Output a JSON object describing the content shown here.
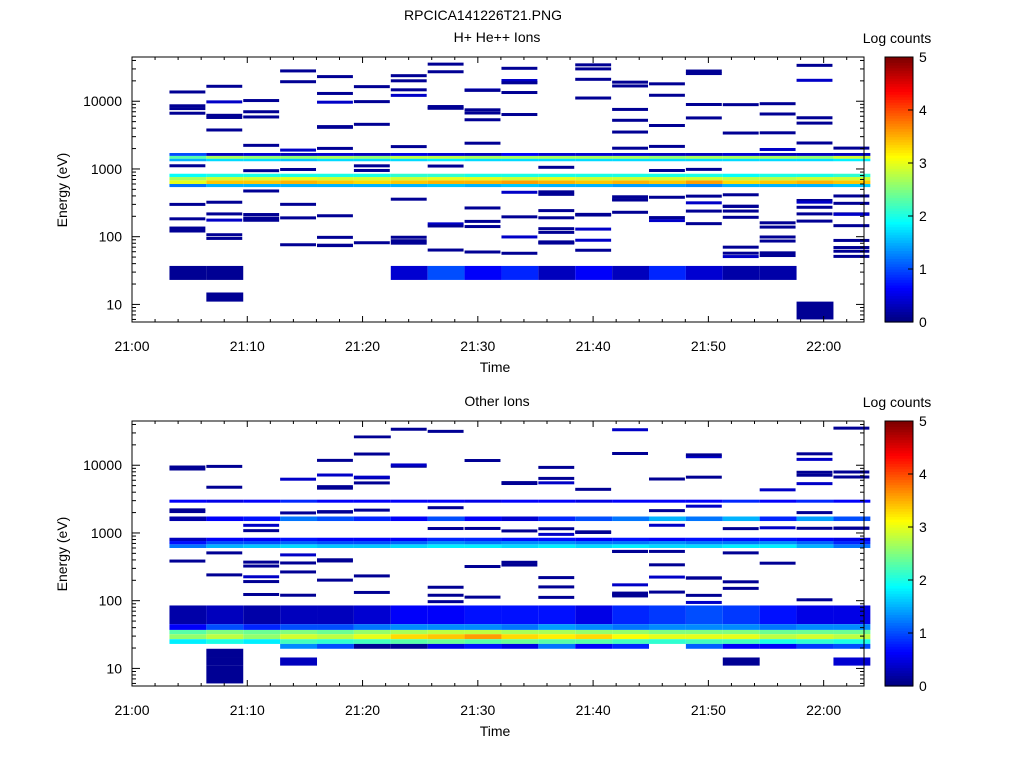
{
  "page_title": "RPCICA141226T21.PNG",
  "chart_data": [
    {
      "type": "heatmap",
      "title": "H+ He++ Ions",
      "xlabel": "Time",
      "ylabel": "Energy (eV)",
      "x_ticks": [
        "21:00",
        "21:10",
        "21:20",
        "21:30",
        "21:40",
        "21:50",
        "22:00"
      ],
      "x_range_minutes": [
        0,
        63.5
      ],
      "y_scale": "log",
      "y_ticks": [
        "10",
        "100",
        "1000",
        "10000"
      ],
      "y_range": [
        5.5,
        45000
      ],
      "colorbar": {
        "label": "Log counts",
        "ticks": [
          "0",
          "1",
          "2",
          "3",
          "4",
          "5"
        ],
        "range": [
          0,
          5
        ]
      },
      "time_bins_minutes": [
        3.25,
        6.45,
        9.65,
        12.85,
        16.05,
        19.25,
        22.45,
        25.65,
        28.85,
        32.05,
        35.25,
        38.45,
        41.65,
        44.85,
        48.05,
        51.25,
        54.45,
        57.65,
        60.85
      ],
      "bands": [
        {
          "e_lo": 540,
          "e_hi": 600,
          "values": [
            1.2,
            1.5,
            1.5,
            1.5,
            1.5,
            1.5,
            1.5,
            1.6,
            1.5,
            1.6,
            1.5,
            1.5,
            1.4,
            1.4,
            1.3,
            1.5,
            1.5,
            1.5,
            1.6
          ]
        },
        {
          "e_lo": 600,
          "e_hi": 680,
          "values": [
            3.0,
            3.4,
            3.4,
            3.5,
            3.4,
            3.3,
            3.4,
            3.5,
            3.5,
            3.6,
            3.5,
            3.4,
            3.5,
            3.4,
            3.6,
            3.3,
            3.4,
            3.5,
            3.4
          ]
        },
        {
          "e_lo": 680,
          "e_hi": 760,
          "values": [
            2.7,
            2.9,
            2.9,
            3.0,
            2.9,
            2.9,
            2.9,
            3.0,
            3.0,
            2.9,
            3.0,
            2.9,
            2.9,
            2.9,
            2.9,
            2.8,
            2.8,
            2.9,
            2.9
          ]
        },
        {
          "e_lo": 760,
          "e_hi": 850,
          "values": [
            1.9,
            2.0,
            2.0,
            2.0,
            2.0,
            2.0,
            2.1,
            2.1,
            2.0,
            2.0,
            2.0,
            2.0,
            2.0,
            2.0,
            2.0,
            1.9,
            2.0,
            2.0,
            2.1
          ]
        },
        {
          "e_lo": 1300,
          "e_hi": 1420,
          "values": [
            1.5,
            1.7,
            1.7,
            1.6,
            1.7,
            1.7,
            1.7,
            1.8,
            1.7,
            1.7,
            1.7,
            1.7,
            1.7,
            1.7,
            1.7,
            1.7,
            1.7,
            1.7,
            1.8
          ]
        },
        {
          "e_lo": 1420,
          "e_hi": 1560,
          "values": [
            2.3,
            2.7,
            2.6,
            2.6,
            2.7,
            2.6,
            2.8,
            2.8,
            2.7,
            2.7,
            2.7,
            2.7,
            2.7,
            2.6,
            2.7,
            2.7,
            2.7,
            2.6,
            2.9
          ]
        },
        {
          "e_lo": 1560,
          "e_hi": 1720,
          "values": [
            1.0,
            0.3,
            0.4,
            0.3,
            0.4,
            0.3,
            0.5,
            0.4,
            0.3,
            0.6,
            0.4,
            0.4,
            0.4,
            0.3,
            0.3,
            0.4,
            0.3,
            0.3,
            0.3
          ]
        },
        {
          "e_lo": 23,
          "e_hi": 37,
          "values": [
            0.1,
            0.1,
            null,
            null,
            null,
            null,
            0.4,
            1.0,
            0.6,
            0.8,
            0.3,
            0.6,
            0.3,
            0.8,
            0.4,
            0.2,
            0.2,
            null,
            null
          ]
        },
        {
          "e_lo": 11,
          "e_hi": 15,
          "values": [
            null,
            0.1,
            null,
            null,
            null,
            null,
            null,
            null,
            null,
            null,
            null,
            null,
            null,
            null,
            null,
            null,
            null,
            null,
            null
          ]
        },
        {
          "e_lo": 6,
          "e_hi": 11,
          "values": [
            null,
            null,
            null,
            null,
            null,
            null,
            null,
            null,
            null,
            null,
            null,
            null,
            null,
            null,
            null,
            null,
            null,
            0.1,
            null
          ]
        }
      ],
      "scatter_level": 0.1,
      "scatter_count_per_bin": 11
    },
    {
      "type": "heatmap",
      "title": "Other Ions",
      "xlabel": "Time",
      "ylabel": "Energy (eV)",
      "x_ticks": [
        "21:00",
        "21:10",
        "21:20",
        "21:30",
        "21:40",
        "21:50",
        "22:00"
      ],
      "x_range_minutes": [
        0,
        63.5
      ],
      "y_scale": "log",
      "y_ticks": [
        "10",
        "100",
        "1000",
        "10000"
      ],
      "y_range": [
        5.5,
        45000
      ],
      "colorbar": {
        "label": "Log counts",
        "ticks": [
          "0",
          "1",
          "2",
          "3",
          "4",
          "5"
        ],
        "range": [
          0,
          5
        ]
      },
      "time_bins_minutes": [
        3.25,
        6.45,
        9.65,
        12.85,
        16.05,
        19.25,
        22.45,
        25.65,
        28.85,
        32.05,
        35.25,
        38.45,
        41.65,
        44.85,
        48.05,
        51.25,
        54.45,
        57.65,
        60.85
      ],
      "bands": [
        {
          "e_lo": 2800,
          "e_hi": 3100,
          "values": [
            0.6,
            0.5,
            0.6,
            0.8,
            0.6,
            0.6,
            0.6,
            0.6,
            0.5,
            0.6,
            0.6,
            0.5,
            0.6,
            0.6,
            0.6,
            0.8,
            0.6,
            0.8,
            0.6
          ]
        },
        {
          "e_lo": 1500,
          "e_hi": 1750,
          "values": [
            0.2,
            0.6,
            0.7,
            1.2,
            1.0,
            0.8,
            0.6,
            1.0,
            0.6,
            0.4,
            0.8,
            1.0,
            1.2,
            1.5,
            1.2,
            1.5,
            0.8,
            1.4,
            1.0
          ]
        },
        {
          "e_lo": 600,
          "e_hi": 680,
          "values": [
            1.2,
            1.5,
            1.6,
            1.7,
            1.6,
            1.6,
            1.7,
            1.8,
            1.8,
            1.7,
            1.8,
            1.7,
            1.8,
            1.7,
            1.7,
            1.8,
            1.8,
            1.5,
            1.2
          ]
        },
        {
          "e_lo": 680,
          "e_hi": 760,
          "values": [
            0.7,
            1.0,
            1.0,
            1.1,
            1.0,
            1.0,
            1.1,
            1.3,
            1.2,
            1.3,
            1.3,
            1.2,
            1.2,
            1.3,
            1.2,
            1.2,
            1.3,
            1.1,
            0.8
          ]
        },
        {
          "e_lo": 760,
          "e_hi": 850,
          "values": [
            0.3,
            0.6,
            0.6,
            0.7,
            0.6,
            0.6,
            0.6,
            0.8,
            0.8,
            0.7,
            0.7,
            0.6,
            0.7,
            0.6,
            0.7,
            0.7,
            0.7,
            0.6,
            0.5
          ]
        },
        {
          "e_lo": 45,
          "e_hi": 85,
          "values": [
            0.2,
            0.3,
            0.2,
            0.3,
            0.3,
            0.4,
            0.6,
            0.6,
            0.7,
            0.7,
            0.7,
            0.5,
            0.8,
            0.9,
            1.0,
            0.9,
            0.7,
            0.5,
            0.5
          ]
        },
        {
          "e_lo": 37,
          "e_hi": 45,
          "values": [
            0.6,
            1.0,
            0.8,
            1.0,
            1.0,
            1.2,
            1.3,
            1.3,
            1.3,
            1.2,
            1.4,
            1.3,
            1.2,
            1.3,
            1.3,
            1.3,
            1.2,
            1.3,
            1.3
          ]
        },
        {
          "e_lo": 32,
          "e_hi": 37,
          "values": [
            2.3,
            2.5,
            2.4,
            2.5,
            2.4,
            2.6,
            2.7,
            2.8,
            2.8,
            2.7,
            2.7,
            2.6,
            2.6,
            2.5,
            2.5,
            2.5,
            2.4,
            2.4,
            2.4
          ]
        },
        {
          "e_lo": 27,
          "e_hi": 32,
          "values": [
            2.6,
            2.8,
            2.6,
            2.9,
            2.8,
            3.0,
            3.3,
            3.4,
            3.6,
            3.3,
            3.2,
            3.3,
            3.1,
            3.0,
            3.0,
            3.0,
            2.8,
            2.9,
            2.8
          ]
        },
        {
          "e_lo": 23,
          "e_hi": 27,
          "values": [
            1.8,
            2.0,
            1.8,
            2.2,
            2.1,
            2.2,
            2.3,
            2.4,
            2.3,
            2.4,
            2.3,
            2.3,
            2.2,
            2.1,
            2.2,
            2.2,
            2.0,
            2.1,
            2.0
          ]
        },
        {
          "e_lo": 19.5,
          "e_hi": 23,
          "values": [
            null,
            null,
            null,
            1.3,
            1.0,
            0.1,
            0.1,
            0.5,
            0.7,
            0.5,
            1.2,
            0.6,
            0.8,
            null,
            1.1,
            0.6,
            0.6,
            0.9,
            1.0
          ]
        },
        {
          "e_lo": 14.5,
          "e_hi": 19.5,
          "values": [
            null,
            0.1,
            null,
            null,
            null,
            null,
            null,
            null,
            null,
            null,
            null,
            null,
            null,
            null,
            null,
            null,
            null,
            null,
            null
          ]
        },
        {
          "e_lo": 11,
          "e_hi": 14.5,
          "values": [
            null,
            0.1,
            null,
            0.3,
            null,
            null,
            null,
            null,
            null,
            null,
            null,
            null,
            null,
            null,
            null,
            0.1,
            null,
            null,
            0.4
          ]
        },
        {
          "e_lo": 6,
          "e_hi": 11,
          "values": [
            null,
            0.1,
            null,
            null,
            null,
            null,
            null,
            null,
            null,
            null,
            null,
            null,
            null,
            null,
            null,
            null,
            null,
            null,
            null
          ]
        },
        {
          "e_lo": 25000,
          "e_hi": 27500,
          "values": [
            null,
            null,
            null,
            null,
            null,
            0.1,
            null,
            null,
            null,
            null,
            null,
            null,
            null,
            null,
            null,
            null,
            null,
            null,
            null
          ]
        },
        {
          "e_lo": 17500,
          "e_hi": 19000,
          "values": [
            null,
            null,
            null,
            null,
            null,
            null,
            null,
            null,
            null,
            null,
            null,
            null,
            null,
            null,
            null,
            null,
            null,
            null,
            null
          ]
        }
      ],
      "scatter_level": 0.1,
      "scatter_count_per_bin": 10
    }
  ]
}
